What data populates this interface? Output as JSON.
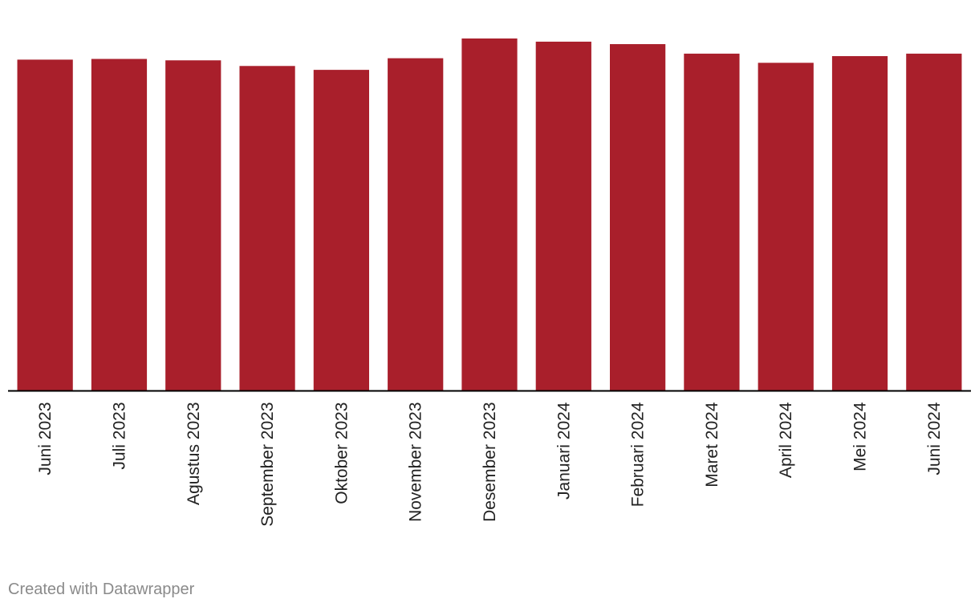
{
  "chart_data": {
    "type": "bar",
    "categories": [
      "Juni 2023",
      "Juli 2023",
      "Agustus 2023",
      "September 2023",
      "Oktober 2023",
      "November 2023",
      "Desember 2023",
      "Januari 2024",
      "Februari 2024",
      "Maret 2024",
      "April 2024",
      "Mei 2024",
      "Juni 2024"
    ],
    "values": [
      94.0,
      94.2,
      93.8,
      92.2,
      91.1,
      94.4,
      100.0,
      99.1,
      98.4,
      95.7,
      93.1,
      95.0,
      95.7
    ],
    "ylim": [
      0,
      100
    ],
    "bar_color": "#a91f2b",
    "axis_color": "#000000",
    "grid": false,
    "legend": "none"
  },
  "footer": {
    "credit": "Created with Datawrapper"
  }
}
